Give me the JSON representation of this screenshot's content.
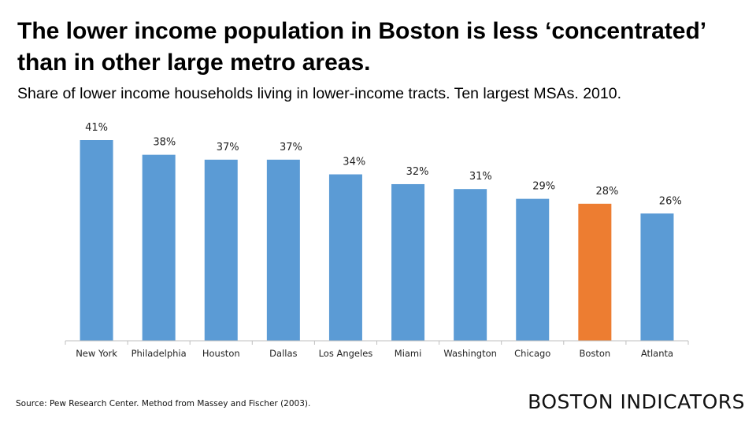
{
  "title": "The lower income population in Boston is less ‘concentrated’ than in other large metro areas.",
  "subtitle": "Share of lower income households living in lower-income tracts. Ten largest MSAs. 2010.",
  "source": "Source: Pew Research Center. Method from Massey and Fischer (2003).",
  "logo": {
    "word_one": "BOSTON",
    "word_two": "INDICATORS"
  },
  "colors": {
    "default_bar": "#5b9bd5",
    "highlight_bar": "#ed7d31",
    "axis": "#bfbfbf"
  },
  "chart_data": {
    "type": "bar",
    "title": "Share of lower income households living in lower-income tracts. Ten largest MSAs. 2010.",
    "xlabel": "",
    "ylabel": "",
    "categories": [
      "New York",
      "Philadelphia",
      "Houston",
      "Dallas",
      "Los Angeles",
      "Miami",
      "Washington",
      "Chicago",
      "Boston",
      "Atlanta"
    ],
    "values": [
      41,
      38,
      37,
      37,
      34,
      32,
      31,
      29,
      28,
      26
    ],
    "value_labels": [
      "41%",
      "38%",
      "37%",
      "37%",
      "34%",
      "32%",
      "31%",
      "29%",
      "28%",
      "26%"
    ],
    "highlight": "Boston",
    "ylim": [
      0,
      41
    ],
    "grid": false
  }
}
